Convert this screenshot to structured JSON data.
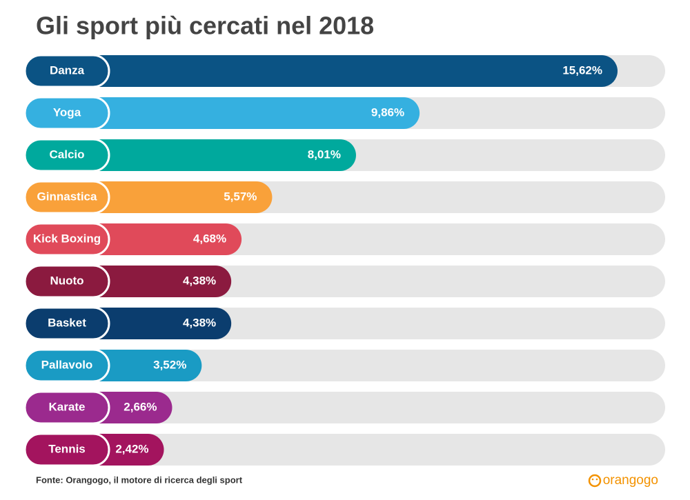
{
  "chart_data": {
    "type": "bar",
    "title": "Gli sport più cercati nel 2018",
    "categories": [
      "Danza",
      "Yoga",
      "Calcio",
      "Ginnastica",
      "Kick Boxing",
      "Nuoto",
      "Basket",
      "Pallavolo",
      "Karate",
      "Tennis"
    ],
    "values": [
      15.62,
      9.86,
      8.01,
      5.57,
      4.68,
      4.38,
      4.38,
      3.52,
      2.66,
      2.42
    ],
    "value_labels": [
      "15,62%",
      "9,86%",
      "8,01%",
      "5,57%",
      "4,68%",
      "4,38%",
      "4,38%",
      "3,52%",
      "2,66%",
      "2,42%"
    ],
    "colors": [
      "#0b5384",
      "#35b0e0",
      "#00a99d",
      "#f9a13a",
      "#e04a5a",
      "#8b1a3f",
      "#0b3d6e",
      "#1a9bc4",
      "#9b2a8e",
      "#a3145e"
    ],
    "source": "Fonte: Orangogo, il motore di ricerca degli sport",
    "brand": "orangogo"
  }
}
